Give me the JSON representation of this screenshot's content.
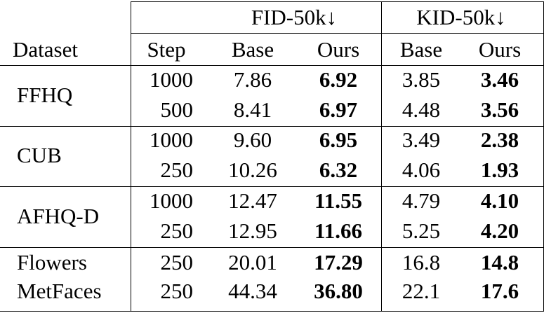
{
  "header": {
    "group_fid": "FID-50k↓",
    "group_kid": "KID-50k↓",
    "col_dataset": "Dataset",
    "col_step": "Step",
    "col_fid_base": "Base",
    "col_fid_ours": "Ours",
    "col_kid_base": "Base",
    "col_kid_ours": "Ours"
  },
  "groups": [
    {
      "dataset": "FFHQ",
      "rows": [
        {
          "step": "1000",
          "fid_base": "7.86",
          "fid_ours": "6.92",
          "kid_base": "3.85",
          "kid_ours": "3.46"
        },
        {
          "step": "500",
          "fid_base": "8.41",
          "fid_ours": "6.97",
          "kid_base": "4.48",
          "kid_ours": "3.56"
        }
      ]
    },
    {
      "dataset": "CUB",
      "rows": [
        {
          "step": "1000",
          "fid_base": "9.60",
          "fid_ours": "6.95",
          "kid_base": "3.49",
          "kid_ours": "2.38"
        },
        {
          "step": "250",
          "fid_base": "10.26",
          "fid_ours": "6.32",
          "kid_base": "4.06",
          "kid_ours": "1.93"
        }
      ]
    },
    {
      "dataset": "AFHQ-D",
      "rows": [
        {
          "step": "1000",
          "fid_base": "12.47",
          "fid_ours": "11.55",
          "kid_base": "4.79",
          "kid_ours": "4.10"
        },
        {
          "step": "250",
          "fid_base": "12.95",
          "fid_ours": "11.66",
          "kid_base": "5.25",
          "kid_ours": "4.20"
        }
      ]
    },
    {
      "dataset": "Flowers",
      "rows": [
        {
          "step": "250",
          "fid_base": "20.01",
          "fid_ours": "17.29",
          "kid_base": "16.8",
          "kid_ours": "14.8"
        }
      ]
    },
    {
      "dataset": "MetFaces",
      "rows": [
        {
          "step": "250",
          "fid_base": "44.34",
          "fid_ours": "36.80",
          "kid_base": "22.1",
          "kid_ours": "17.6"
        }
      ]
    }
  ]
}
